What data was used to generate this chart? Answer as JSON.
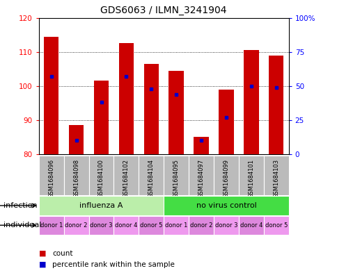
{
  "title": "GDS6063 / ILMN_3241904",
  "samples": [
    "GSM1684096",
    "GSM1684098",
    "GSM1684100",
    "GSM1684102",
    "GSM1684104",
    "GSM1684095",
    "GSM1684097",
    "GSM1684099",
    "GSM1684101",
    "GSM1684103"
  ],
  "count_values": [
    114.5,
    88.5,
    101.5,
    112.5,
    106.5,
    104.5,
    85.0,
    99.0,
    110.5,
    109.0
  ],
  "percentile_values": [
    57,
    10,
    38,
    57,
    48,
    44,
    10,
    27,
    50,
    49
  ],
  "ylim_left": [
    80,
    120
  ],
  "ylim_right": [
    0,
    100
  ],
  "yticks_left": [
    80,
    90,
    100,
    110,
    120
  ],
  "yticks_right": [
    0,
    25,
    50,
    75,
    100
  ],
  "bar_color": "#cc0000",
  "dot_color": "#0000cc",
  "infection_groups": [
    {
      "label": "influenza A",
      "start": 0,
      "end": 5,
      "color": "#bbeeaa"
    },
    {
      "label": "no virus control",
      "start": 5,
      "end": 10,
      "color": "#44dd44"
    }
  ],
  "individual_labels": [
    "donor 1",
    "donor 2",
    "donor 3",
    "donor 4",
    "donor 5",
    "donor 1",
    "donor 2",
    "donor 3",
    "donor 4",
    "donor 5"
  ],
  "ind_colors_odd": "#dd88dd",
  "ind_colors_even": "#ee99ee",
  "sample_bg_color": "#bbbbbb",
  "infection_row_label": "infection",
  "individual_row_label": "individual",
  "legend_count_label": "count",
  "legend_percentile_label": "percentile rank within the sample",
  "title_fontsize": 10,
  "tick_fontsize": 7.5,
  "sample_label_fontsize": 6,
  "infection_fontsize": 8,
  "individual_fontsize": 6,
  "legend_fontsize": 7.5
}
